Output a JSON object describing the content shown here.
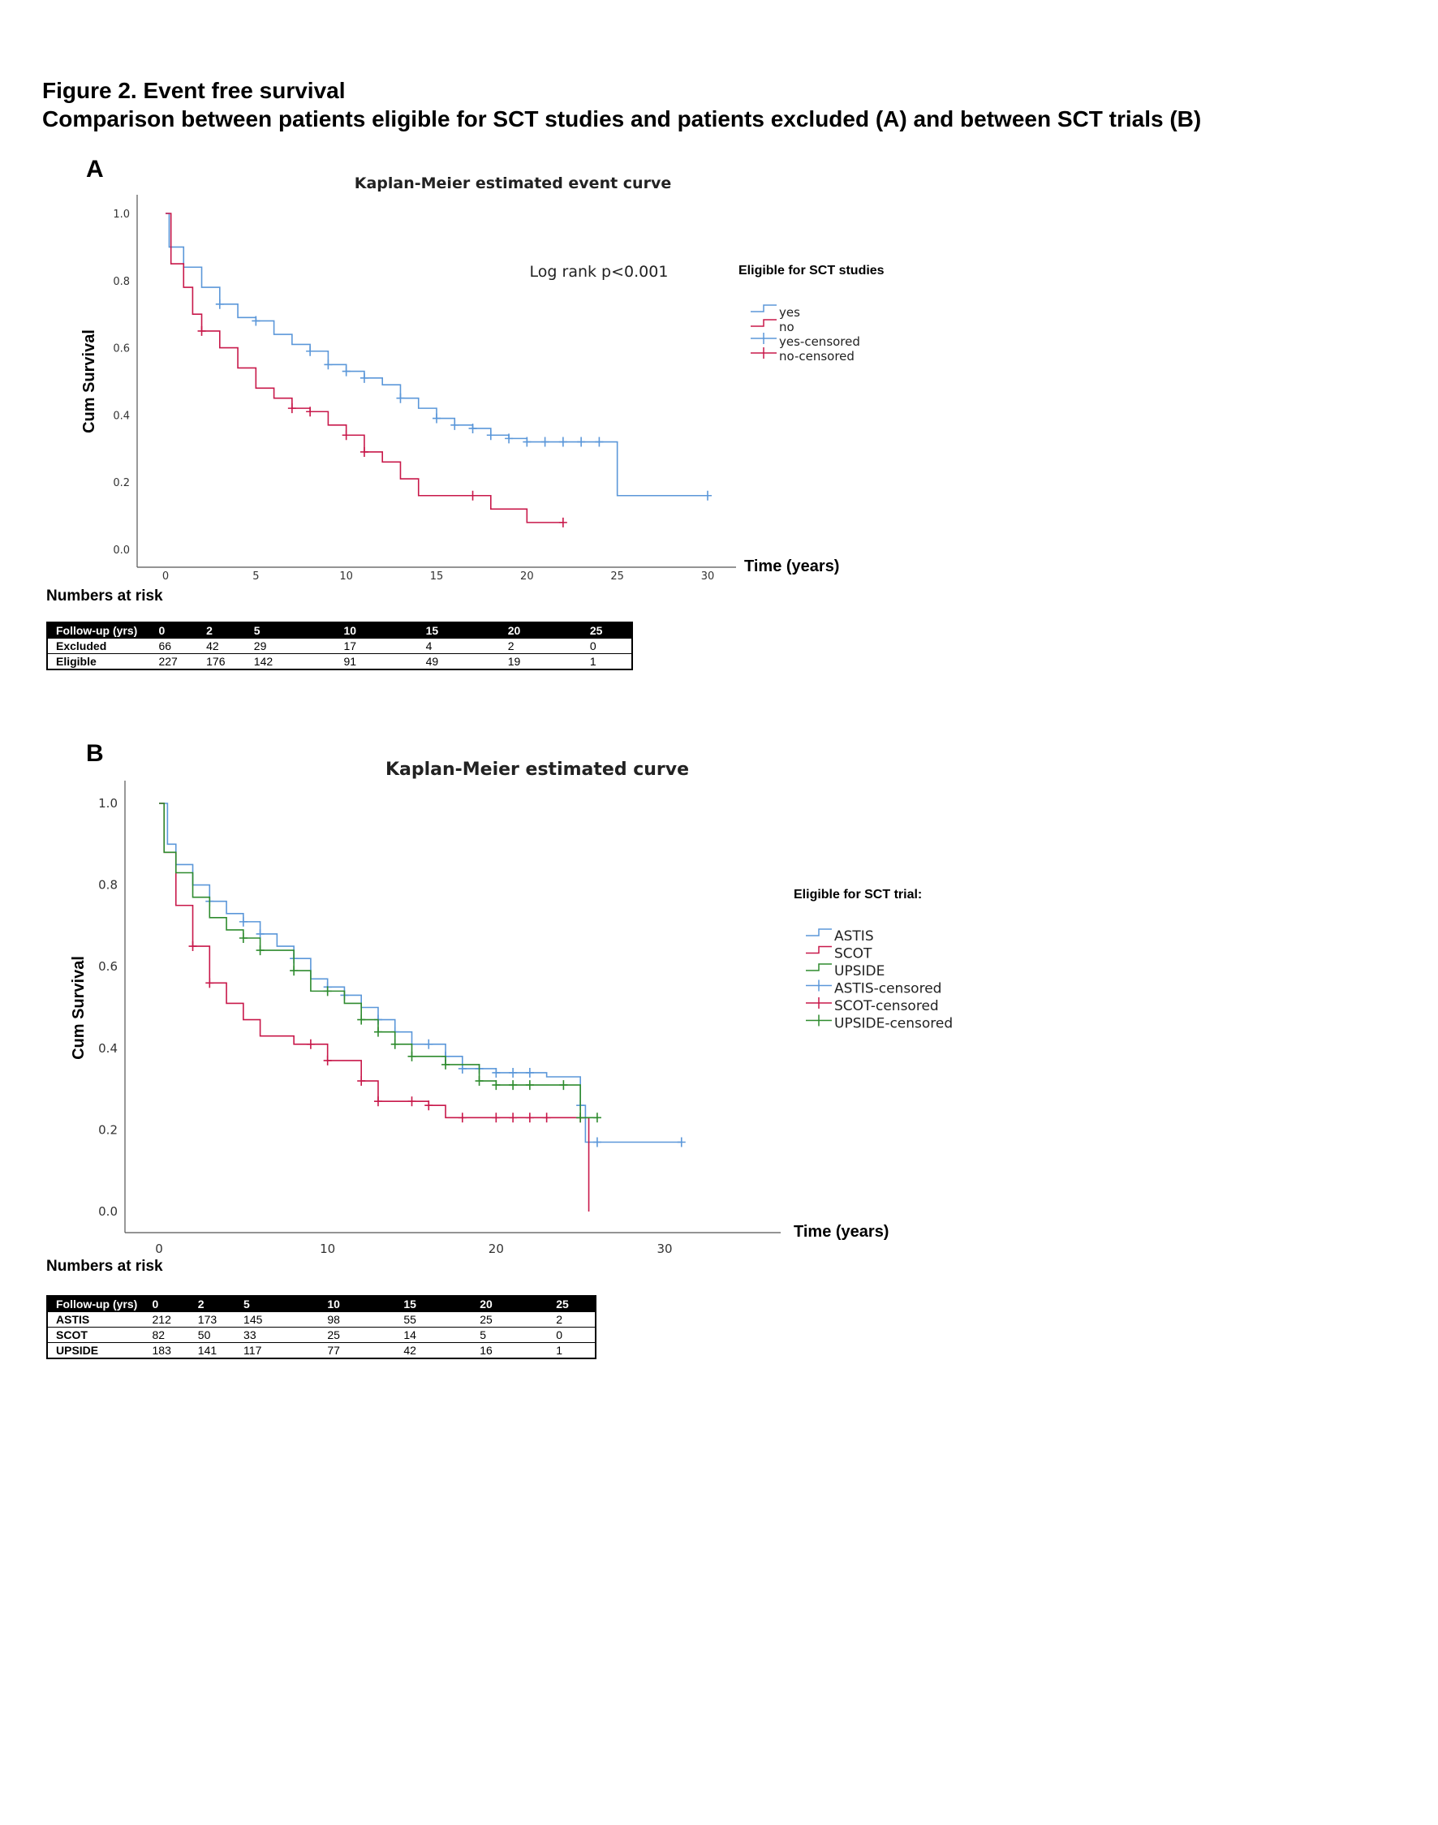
{
  "title": "Figure 2. Event free survival",
  "subtitle": "Comparison between patients eligible for SCT studies and patients excluded (A) and between SCT trials (B)",
  "chart_data": [
    {
      "panel": "A",
      "type": "line",
      "title": "Kaplan-Meier estimated event curve",
      "xlabel": "Time (years)",
      "ylabel": "Cum Survival",
      "xlim": [
        0,
        30
      ],
      "ylim": [
        0,
        1
      ],
      "xticks": [
        "0",
        "5",
        "10",
        "15",
        "20",
        "25",
        "30"
      ],
      "yticks": [
        "0.0",
        "0.2",
        "0.4",
        "0.6",
        "0.8",
        "1.0"
      ],
      "annotation": "Log rank p<0.001",
      "legend_title": "Eligible for SCT studies",
      "legend": [
        "yes",
        "no",
        "yes-censored",
        "no-censored"
      ],
      "series": [
        {
          "name": "yes",
          "color": "#5b97d9",
          "x": [
            0,
            0.2,
            1,
            2,
            3,
            4,
            5,
            6,
            7,
            8,
            9,
            10,
            11,
            12,
            13,
            14,
            15,
            16,
            17,
            18,
            19,
            20,
            25,
            30
          ],
          "y": [
            1,
            0.9,
            0.84,
            0.78,
            0.73,
            0.69,
            0.68,
            0.64,
            0.61,
            0.59,
            0.55,
            0.53,
            0.51,
            0.49,
            0.45,
            0.42,
            0.39,
            0.37,
            0.36,
            0.34,
            0.33,
            0.32,
            0.16,
            0.16
          ],
          "censored": [
            3,
            5,
            8,
            9,
            10,
            11,
            13,
            15,
            16,
            17,
            18,
            19,
            20,
            21,
            22,
            23,
            24,
            30
          ]
        },
        {
          "name": "no",
          "color": "#c8184a",
          "x": [
            0,
            0.3,
            1,
            1.5,
            2,
            3,
            4,
            5,
            6,
            7,
            8,
            9,
            10,
            11,
            12,
            13,
            14,
            17,
            18,
            20,
            22
          ],
          "y": [
            1,
            0.85,
            0.78,
            0.7,
            0.65,
            0.6,
            0.54,
            0.48,
            0.45,
            0.42,
            0.41,
            0.37,
            0.34,
            0.29,
            0.26,
            0.21,
            0.16,
            0.16,
            0.12,
            0.08,
            0.08
          ],
          "censored": [
            2,
            7,
            8,
            10,
            11,
            17,
            22
          ]
        }
      ],
      "at_risk": {
        "label": "Numbers at risk",
        "header": [
          "Follow-up (yrs)",
          "0",
          "2",
          "5",
          "10",
          "15",
          "20",
          "25"
        ],
        "rows": [
          [
            "Excluded",
            "66",
            "42",
            "29",
            "17",
            "4",
            "2",
            "0"
          ],
          [
            "Eligible",
            "227",
            "176",
            "142",
            "91",
            "49",
            "19",
            "1"
          ]
        ]
      }
    },
    {
      "panel": "B",
      "type": "line",
      "title": "Kaplan-Meier estimated curve",
      "xlabel": "Time (years)",
      "ylabel": "Cum Survival",
      "xlim": [
        0,
        30
      ],
      "ylim": [
        0,
        1
      ],
      "xticks": [
        "0",
        "10",
        "20",
        "30"
      ],
      "yticks": [
        "0.0",
        "0.2",
        "0.4",
        "0.6",
        "0.8",
        "1.0"
      ],
      "legend_title": "Eligible for SCT trial:",
      "legend": [
        "ASTIS",
        "SCOT",
        "UPSIDE",
        "ASTIS-censored",
        "SCOT-censored",
        "UPSIDE-censored"
      ],
      "series": [
        {
          "name": "ASTIS",
          "color": "#5b97d9",
          "x": [
            0,
            0.5,
            1,
            2,
            3,
            4,
            5,
            6,
            7,
            8,
            9,
            10,
            11,
            12,
            13,
            14,
            15,
            17,
            18,
            20,
            23,
            25,
            25.3,
            31
          ],
          "y": [
            1,
            0.9,
            0.85,
            0.8,
            0.76,
            0.73,
            0.71,
            0.68,
            0.65,
            0.62,
            0.57,
            0.55,
            0.53,
            0.5,
            0.47,
            0.44,
            0.41,
            0.38,
            0.35,
            0.34,
            0.33,
            0.26,
            0.17,
            0.17
          ],
          "censored": [
            3,
            5,
            6,
            8,
            10,
            11,
            13,
            14,
            16,
            17,
            18,
            19,
            20,
            21,
            22,
            25,
            26,
            31
          ]
        },
        {
          "name": "SCOT",
          "color": "#c8184a",
          "x": [
            0,
            0.3,
            1,
            2,
            3,
            4,
            5,
            6,
            8,
            10,
            12,
            13,
            16,
            17,
            25,
            25.5
          ],
          "y": [
            1,
            0.88,
            0.75,
            0.65,
            0.56,
            0.51,
            0.47,
            0.43,
            0.41,
            0.37,
            0.32,
            0.27,
            0.26,
            0.23,
            0.23,
            0
          ],
          "censored": [
            2,
            3,
            9,
            10,
            12,
            13,
            15,
            16,
            18,
            20,
            21,
            22,
            23,
            25
          ]
        },
        {
          "name": "UPSIDE",
          "color": "#2e8b2e",
          "x": [
            0,
            0.3,
            1,
            2,
            3,
            4,
            5,
            6,
            8,
            9,
            11,
            12,
            13,
            14,
            15,
            17,
            19,
            20,
            24.5,
            25,
            26
          ],
          "y": [
            1,
            0.88,
            0.83,
            0.77,
            0.72,
            0.69,
            0.67,
            0.64,
            0.59,
            0.54,
            0.51,
            0.47,
            0.44,
            0.41,
            0.38,
            0.36,
            0.32,
            0.31,
            0.31,
            0.23,
            0.23
          ],
          "censored": [
            5,
            6,
            8,
            10,
            12,
            13,
            14,
            15,
            17,
            19,
            20,
            21,
            22,
            24,
            25,
            26
          ]
        }
      ],
      "at_risk": {
        "label": "Numbers at risk",
        "header": [
          "Follow-up (yrs)",
          "0",
          "2",
          "5",
          "10",
          "15",
          "20",
          "25"
        ],
        "rows": [
          [
            "ASTIS",
            "212",
            "173",
            "145",
            "98",
            "55",
            "25",
            "2"
          ],
          [
            "SCOT",
            "82",
            "50",
            "33",
            "25",
            "14",
            "5",
            "0"
          ],
          [
            "UPSIDE",
            "183",
            "141",
            "117",
            "77",
            "42",
            "16",
            "1"
          ]
        ]
      }
    }
  ]
}
